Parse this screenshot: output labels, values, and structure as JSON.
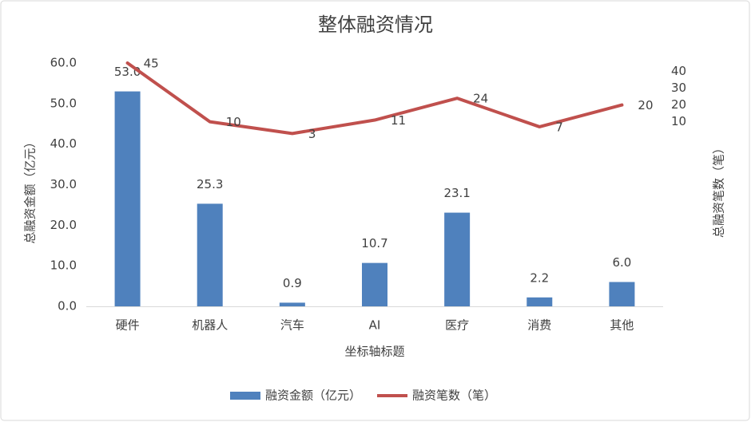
{
  "chart_data": {
    "type": "combo",
    "title": "整体融资情况",
    "x_label": "坐标轴标题",
    "y_label": "总融资金额（亿元）",
    "y2_label": "总融资笔数（笔）",
    "categories": [
      "硬件",
      "机器人",
      "汽车",
      "AI",
      "医疗",
      "消费",
      "其他"
    ],
    "series": [
      {
        "name": "融资金额（亿元）",
        "type": "bar",
        "color": "#4f81bd",
        "values": [
          53,
          25.3,
          0.9,
          10.7,
          23.1,
          2.2,
          6
        ],
        "value_labels": [
          "53.0",
          "25.3",
          "0.9",
          "10.7",
          "23.1",
          "2.2",
          "6.0"
        ]
      },
      {
        "name": "融资笔数（笔）",
        "type": "line",
        "color": "#c0504d",
        "axis": "y2",
        "values": [
          45,
          10,
          3,
          11,
          24,
          7,
          20
        ]
      }
    ],
    "ylim": [
      0,
      60
    ],
    "yticks": [
      {
        "value": 0,
        "label": "0.0"
      },
      {
        "value": 10,
        "label": "10.0"
      },
      {
        "value": 20,
        "label": "20.0"
      },
      {
        "value": 30,
        "label": "30.0"
      },
      {
        "value": 40,
        "label": "40.0"
      },
      {
        "value": 50,
        "label": "50.0"
      },
      {
        "value": 60,
        "label": "60.0"
      }
    ],
    "y2lim": [
      -100,
      45
    ],
    "y2ticks": [
      10,
      20,
      30,
      40
    ],
    "legend": "bottom"
  }
}
